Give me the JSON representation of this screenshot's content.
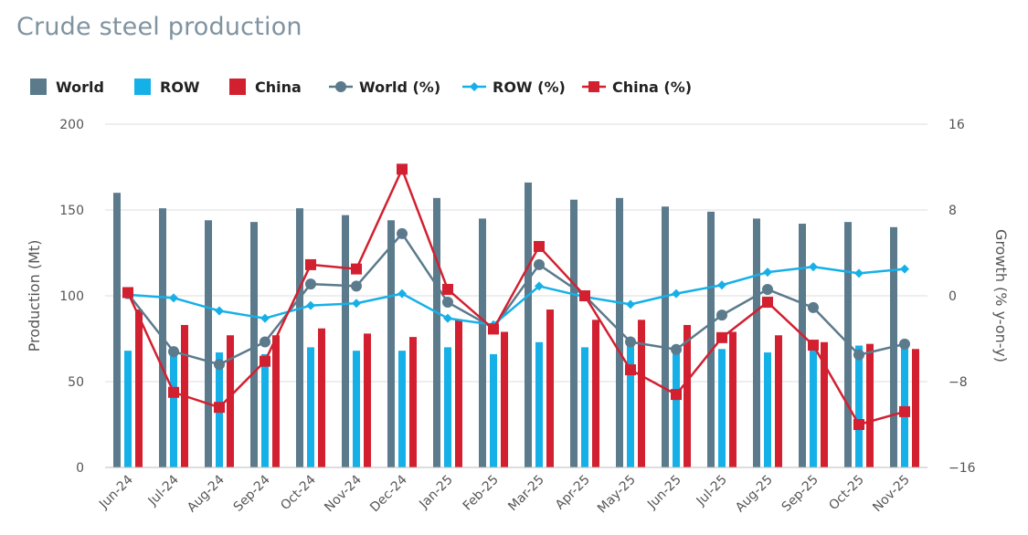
{
  "title": "Crude steel production",
  "colors": {
    "world": "#5b7a8c",
    "row": "#16b0e8",
    "china": "#d22030",
    "grid": "#dcdcdc",
    "axis_text": "#555555"
  },
  "chart_data": {
    "type": "bar",
    "title": "Crude steel production",
    "categories": [
      "Jun-24",
      "Jul-24",
      "Aug-24",
      "Sep-24",
      "Oct-24",
      "Nov-24",
      "Dec-24",
      "Jan-25",
      "Feb-25",
      "Mar-25",
      "Apr-25",
      "May-25",
      "Jun-25",
      "Jul-25",
      "Aug-25",
      "Sep-25",
      "Oct-25",
      "Nov-25"
    ],
    "left_axis": {
      "label": "Production (Mt)",
      "ylim": [
        0,
        200
      ],
      "ticks": [
        "0",
        "50",
        "100",
        "150",
        "200"
      ]
    },
    "right_axis": {
      "label": "Growth (% y-on-y)",
      "ylim": [
        -16,
        16
      ],
      "ticks": [
        "-16",
        "-8",
        "0",
        "8",
        "16"
      ]
    },
    "grid": true,
    "legend_position": "top-left",
    "bar_series": [
      {
        "name": "World",
        "values": [
          160,
          151,
          144,
          143,
          151,
          147,
          144,
          157,
          145,
          166,
          156,
          157,
          152,
          149,
          145,
          142,
          143,
          140
        ]
      },
      {
        "name": "ROW",
        "values": [
          68,
          70,
          67,
          66,
          70,
          68,
          68,
          70,
          66,
          73,
          70,
          72,
          70,
          69,
          67,
          70,
          71,
          70
        ]
      },
      {
        "name": "China",
        "values": [
          92,
          83,
          77,
          77,
          81,
          78,
          76,
          86,
          79,
          92,
          86,
          86,
          83,
          79,
          77,
          73,
          72,
          69
        ]
      }
    ],
    "line_series": [
      {
        "name": "World (%)",
        "marker": "circle",
        "values": [
          0.2,
          -5.2,
          -6.4,
          -4.3,
          1.1,
          0.9,
          5.8,
          -0.6,
          -3.0,
          2.9,
          0.0,
          -4.3,
          -5.0,
          -1.8,
          0.6,
          -1.1,
          -5.5,
          -4.5
        ]
      },
      {
        "name": "ROW (%)",
        "marker": "diamond",
        "values": [
          0.1,
          -0.2,
          -1.4,
          -2.1,
          -0.9,
          -0.7,
          0.2,
          -2.1,
          -2.7,
          0.9,
          -0.1,
          -0.8,
          0.2,
          1.0,
          2.2,
          2.7,
          2.1,
          2.5
        ]
      },
      {
        "name": "China (%)",
        "marker": "square",
        "values": [
          0.3,
          -9.0,
          -10.4,
          -6.1,
          2.9,
          2.5,
          11.8,
          0.6,
          -3.1,
          4.6,
          0.0,
          -6.9,
          -9.2,
          -3.9,
          -0.6,
          -4.6,
          -12.0,
          -10.8
        ]
      }
    ],
    "legend": [
      "World",
      "ROW",
      "China",
      "World (%)",
      "ROW (%)",
      "China (%)"
    ]
  }
}
